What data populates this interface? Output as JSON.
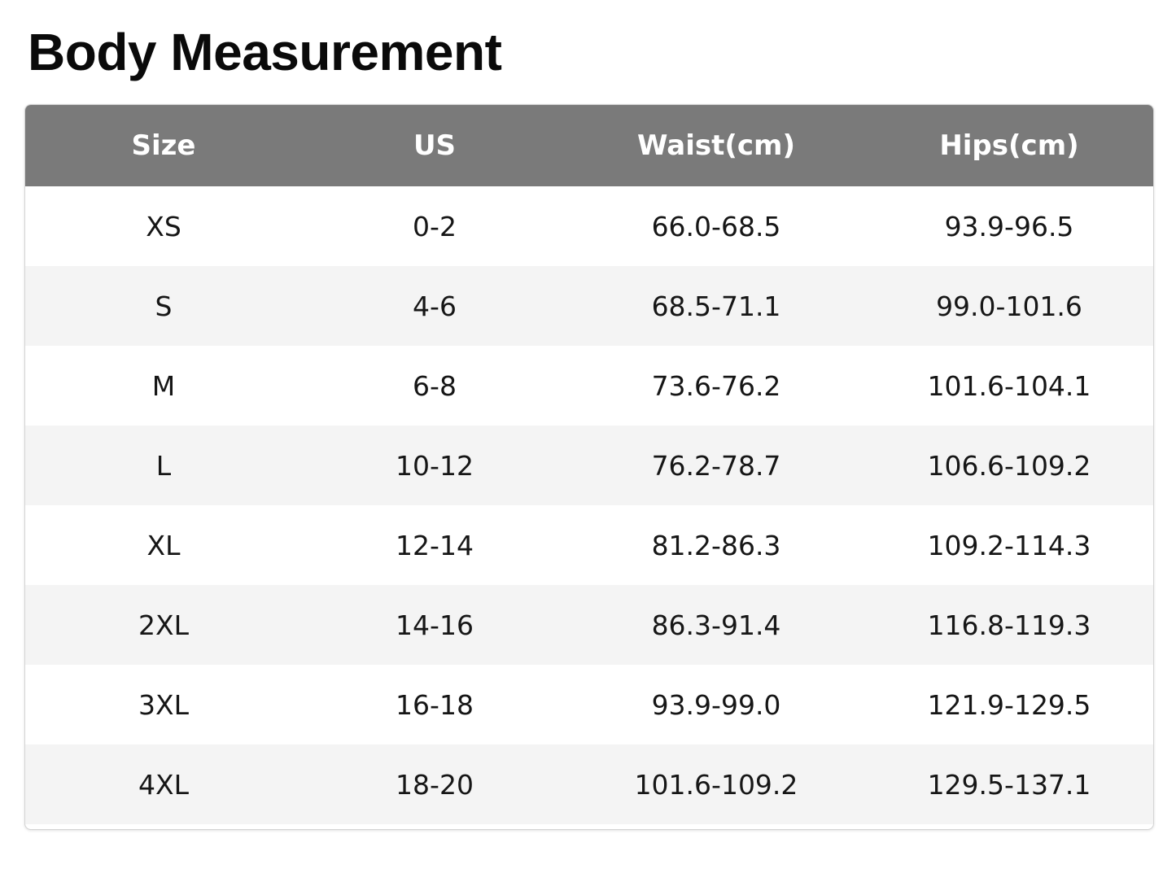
{
  "title": "Body Measurement",
  "table": {
    "headers": [
      "Size",
      "US",
      "Waist(cm)",
      "Hips(cm)"
    ],
    "rows": [
      [
        "XS",
        "0-2",
        "66.0-68.5",
        "93.9-96.5"
      ],
      [
        "S",
        "4-6",
        "68.5-71.1",
        "99.0-101.6"
      ],
      [
        "M",
        "6-8",
        "73.6-76.2",
        "101.6-104.1"
      ],
      [
        "L",
        "10-12",
        "76.2-78.7",
        "106.6-109.2"
      ],
      [
        "XL",
        "12-14",
        "81.2-86.3",
        "109.2-114.3"
      ],
      [
        "2XL",
        "14-16",
        "86.3-91.4",
        "116.8-119.3"
      ],
      [
        "3XL",
        "16-18",
        "93.9-99.0",
        "121.9-129.5"
      ],
      [
        "4XL",
        "18-20",
        "101.6-109.2",
        "129.5-137.1"
      ]
    ]
  },
  "colors": {
    "header_background": "#7a7a7a",
    "header_text": "#ffffff",
    "row_alternate": "#f4f4f4",
    "row_default": "#ffffff"
  }
}
